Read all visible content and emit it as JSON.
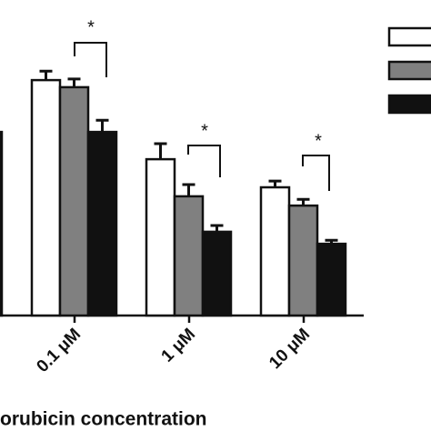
{
  "chart_data": {
    "type": "bar",
    "categories": [
      null,
      "0.1 μM",
      "1 μM",
      "10 μM"
    ],
    "x_label": "orubicin concentration",
    "series": [
      {
        "color": "#ffffff",
        "values": [
          null,
          86.3,
          57.3,
          47
        ],
        "errors": [
          null,
          3.3,
          5.7,
          2.3
        ]
      },
      {
        "color": "#808080",
        "values": [
          null,
          83.7,
          43.7,
          40.3
        ],
        "errors": [
          null,
          3,
          4.3,
          2.3
        ]
      },
      {
        "color": "#111111",
        "values": [
          67.3,
          67.3,
          30.7,
          26.3
        ],
        "errors": [
          null,
          4.3,
          2.3,
          1.3
        ]
      }
    ],
    "annotations": [
      "*",
      "*",
      "*"
    ],
    "ylim": [
      0,
      100
    ]
  }
}
